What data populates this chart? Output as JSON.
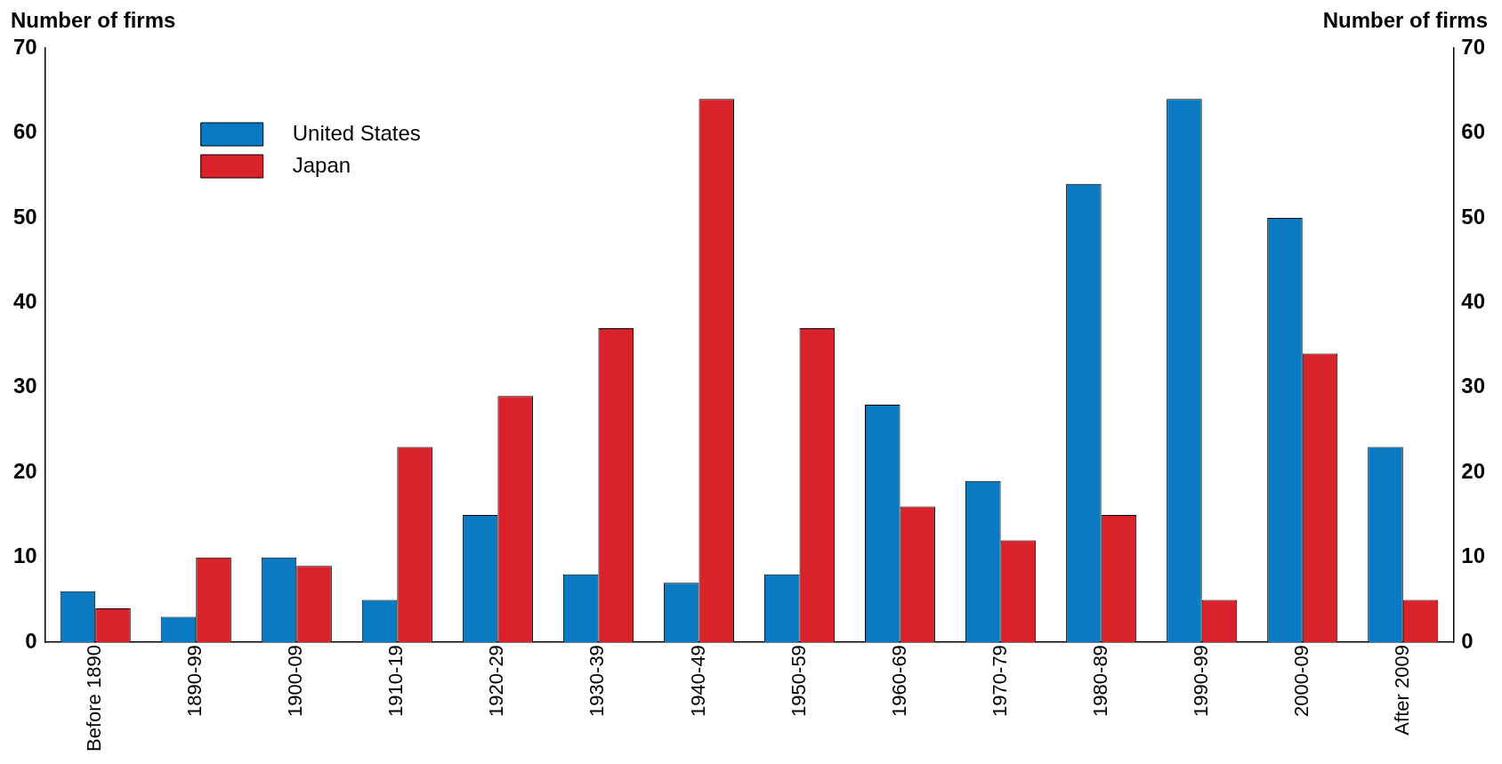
{
  "chart_data": {
    "type": "bar",
    "ylabel": "Number of firms",
    "y2label": "Number of firms",
    "categories": [
      "Before 1890",
      "1890-99",
      "1900-09",
      "1910-19",
      "1920-29",
      "1930-39",
      "1940-49",
      "1950-59",
      "1960-69",
      "1970-79",
      "1980-89",
      "1990-99",
      "2000-09",
      "After 2009"
    ],
    "series": [
      {
        "name": "United States",
        "color": "#0a7bc2",
        "values": [
          6,
          3,
          10,
          5,
          15,
          8,
          7,
          8,
          28,
          19,
          54,
          64,
          50,
          23
        ]
      },
      {
        "name": "Japan",
        "color": "#d9222a",
        "values": [
          4,
          10,
          9,
          23,
          29,
          37,
          64,
          37,
          16,
          12,
          15,
          5,
          34,
          5
        ]
      }
    ],
    "ylim": [
      0,
      70
    ],
    "yticks": [
      0,
      10,
      20,
      30,
      40,
      50,
      60,
      70
    ],
    "y2lim": [
      0,
      70
    ],
    "y2ticks": [
      0,
      10,
      20,
      30,
      40,
      50,
      60,
      70
    ],
    "grid": false,
    "legend": "top left"
  }
}
